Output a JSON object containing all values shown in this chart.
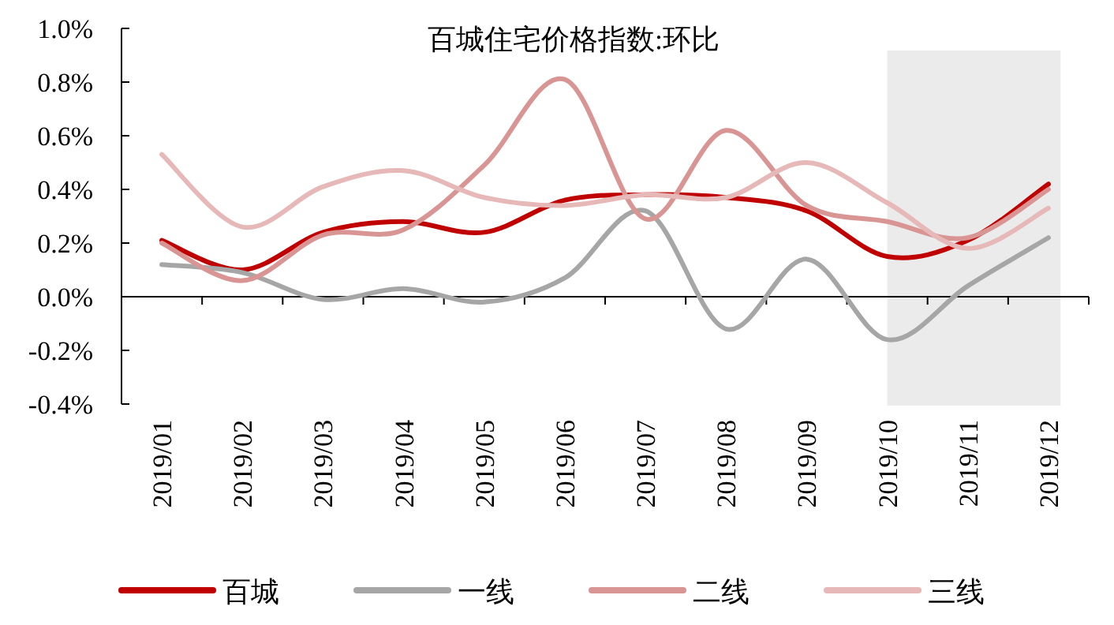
{
  "chart_data": {
    "type": "line",
    "title": "百城住宅价格指数:环比",
    "categories": [
      "2019/01",
      "2019/02",
      "2019/03",
      "2019/04",
      "2019/05",
      "2019/06",
      "2019/07",
      "2019/08",
      "2019/09",
      "2019/10",
      "2019/11",
      "2019/12"
    ],
    "series": [
      {
        "name": "百城",
        "color": "#c00000",
        "values": [
          0.21,
          0.1,
          0.24,
          0.28,
          0.24,
          0.36,
          0.38,
          0.37,
          0.32,
          0.15,
          0.21,
          0.42
        ]
      },
      {
        "name": "一线",
        "color": "#a6a6a6",
        "values": [
          0.12,
          0.09,
          -0.01,
          0.03,
          -0.02,
          0.07,
          0.32,
          -0.12,
          0.14,
          -0.16,
          0.04,
          0.22
        ]
      },
      {
        "name": "二线",
        "color": "#d99594",
        "values": [
          0.2,
          0.06,
          0.23,
          0.25,
          0.49,
          0.81,
          0.29,
          0.62,
          0.34,
          0.28,
          0.22,
          0.4
        ]
      },
      {
        "name": "三线",
        "color": "#e6b9b8",
        "values": [
          0.53,
          0.26,
          0.41,
          0.47,
          0.37,
          0.34,
          0.38,
          0.37,
          0.5,
          0.35,
          0.18,
          0.33
        ]
      }
    ],
    "ylim": [
      -0.4,
      1.0
    ],
    "yticks": [
      {
        "value": -0.4,
        "label": "-0.4%"
      },
      {
        "value": -0.2,
        "label": "-0.2%"
      },
      {
        "value": 0,
        "label": "0.0%"
      },
      {
        "value": 0.2,
        "label": "0.2%"
      },
      {
        "value": 0.4,
        "label": "0.4%"
      },
      {
        "value": 0.6,
        "label": "0.6%"
      },
      {
        "value": 0.8,
        "label": "0.8%"
      },
      {
        "value": 1.0,
        "label": "1.0%"
      }
    ],
    "bands": [
      {
        "axis": "x",
        "from": "2019/10",
        "to": "2019/12",
        "color": "#ebebeb"
      }
    ],
    "legend": "bottom",
    "marker": "none",
    "line_style": "solid"
  }
}
